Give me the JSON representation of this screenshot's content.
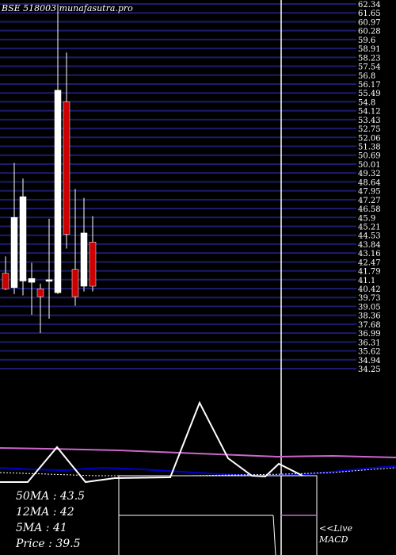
{
  "header": {
    "title": "BSE 518003 munafasutra.pro"
  },
  "chart_data": {
    "type": "candlestick",
    "title": "BSE 518003 munafasutra.pro",
    "y_ticks": [
      "62.34",
      "61.65",
      "60.97",
      "60.28",
      "59.6",
      "58.91",
      "58.23",
      "57.54",
      "56.8",
      "56.17",
      "55.49",
      "54.8",
      "54.12",
      "53.43",
      "52.75",
      "52.06",
      "51.38",
      "50.69",
      "50.01",
      "49.32",
      "48.64",
      "47.95",
      "47.27",
      "46.58",
      "45.9",
      "45.21",
      "44.53",
      "43.84",
      "43.16",
      "42.47",
      "41.79",
      "41.1",
      "40.42",
      "39.73",
      "39.05",
      "38.36",
      "37.68",
      "36.99",
      "36.31",
      "35.62",
      "34.94",
      "34.25"
    ],
    "ylim": [
      34.25,
      62.34
    ],
    "candles": [
      {
        "open": 41.6,
        "high": 42.9,
        "low": 40.3,
        "close": 40.4
      },
      {
        "open": 40.5,
        "high": 50.1,
        "low": 40.0,
        "close": 45.9
      },
      {
        "open": 41.0,
        "high": 48.9,
        "low": 39.9,
        "close": 47.5
      },
      {
        "open": 40.9,
        "high": 42.4,
        "low": 38.4,
        "close": 41.2
      },
      {
        "open": 40.4,
        "high": 40.8,
        "low": 37.0,
        "close": 39.8
      },
      {
        "open": 41.1,
        "high": 45.8,
        "low": 38.1,
        "close": 41.1
      },
      {
        "open": 40.1,
        "high": 62.3,
        "low": 40.0,
        "close": 55.7
      },
      {
        "open": 54.8,
        "high": 58.6,
        "low": 43.5,
        "close": 44.6
      },
      {
        "open": 41.9,
        "high": 48.1,
        "low": 39.1,
        "close": 39.8
      },
      {
        "open": 40.6,
        "high": 47.4,
        "low": 40.2,
        "close": 44.7
      },
      {
        "open": 44.0,
        "high": 46.0,
        "low": 40.2,
        "close": 40.6
      }
    ],
    "legend": {
      "ma50": "50MA : 43.5",
      "ma12": "12MA : 42",
      "ma5": "5MA : 41",
      "price": "Price   : 39.5"
    },
    "macd_label": "<<Live MACD",
    "macd_label_line1": "<<Live",
    "macd_label_line2": "MACD",
    "colors": {
      "up": "#ffffff",
      "down": "#cc0000",
      "gridline": "#1c1c6e",
      "ma_magenta": "#cc66cc",
      "ma_blue": "#0000cc"
    }
  }
}
